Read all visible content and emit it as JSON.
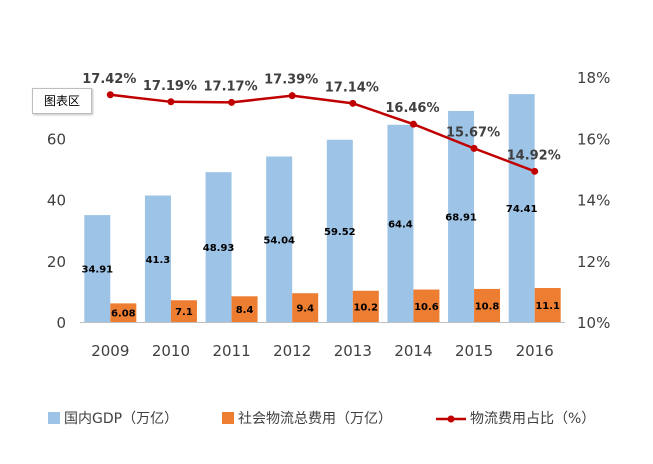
{
  "chart_data": {
    "type": "bar",
    "categories": [
      "2009",
      "2010",
      "2011",
      "2012",
      "2013",
      "2014",
      "2015",
      "2016"
    ],
    "series": [
      {
        "name": "国内GDP（万亿）",
        "type": "bar",
        "axis": "left",
        "values": [
          34.91,
          41.3,
          48.93,
          54.04,
          59.52,
          64.4,
          68.91,
          74.41
        ]
      },
      {
        "name": "社会物流总费用（万亿）",
        "type": "bar",
        "axis": "left",
        "values": [
          6.08,
          7.1,
          8.4,
          9.4,
          10.2,
          10.6,
          10.8,
          11.1
        ]
      },
      {
        "name": "物流费用占比（%）",
        "type": "line",
        "axis": "right",
        "values": [
          17.42,
          17.19,
          17.17,
          17.39,
          17.14,
          16.46,
          15.67,
          14.92
        ]
      }
    ],
    "value_labels": {
      "gdp": [
        "34.91",
        "41.3",
        "48.93",
        "54.04",
        "59.52",
        "64.4",
        "68.91",
        "74.41"
      ],
      "cost": [
        "6.08",
        "7.1",
        "8.4",
        "9.4",
        "10.2",
        "10.6",
        "10.8",
        "11.1"
      ],
      "ratio": [
        "17.42%",
        "17.19%",
        "17.17%",
        "17.39%",
        "17.14%",
        "16.46%",
        "15.67%",
        "14.92%"
      ]
    },
    "left_axis": {
      "ylim": [
        0,
        80
      ],
      "ticks": [
        0,
        20,
        40,
        60
      ],
      "tick_labels": [
        "0",
        "20",
        "40",
        "60"
      ]
    },
    "right_axis": {
      "ylim": [
        10,
        18
      ],
      "ticks": [
        10,
        12,
        14,
        16,
        18
      ],
      "tick_labels": [
        "10%",
        "12%",
        "14%",
        "16%",
        "18%"
      ]
    },
    "legend": {
      "position": "bottom",
      "labels": [
        "国内GDP（万亿）",
        "社会物流总费用（万亿）",
        "物流费用占比（%）"
      ]
    },
    "grid": false,
    "colors": {
      "gdp": "#9dc3e6",
      "cost": "#ed7d31",
      "ratio": "#c00000",
      "axis": "#bfbfbf"
    },
    "chart_area_tag": "图表区"
  }
}
